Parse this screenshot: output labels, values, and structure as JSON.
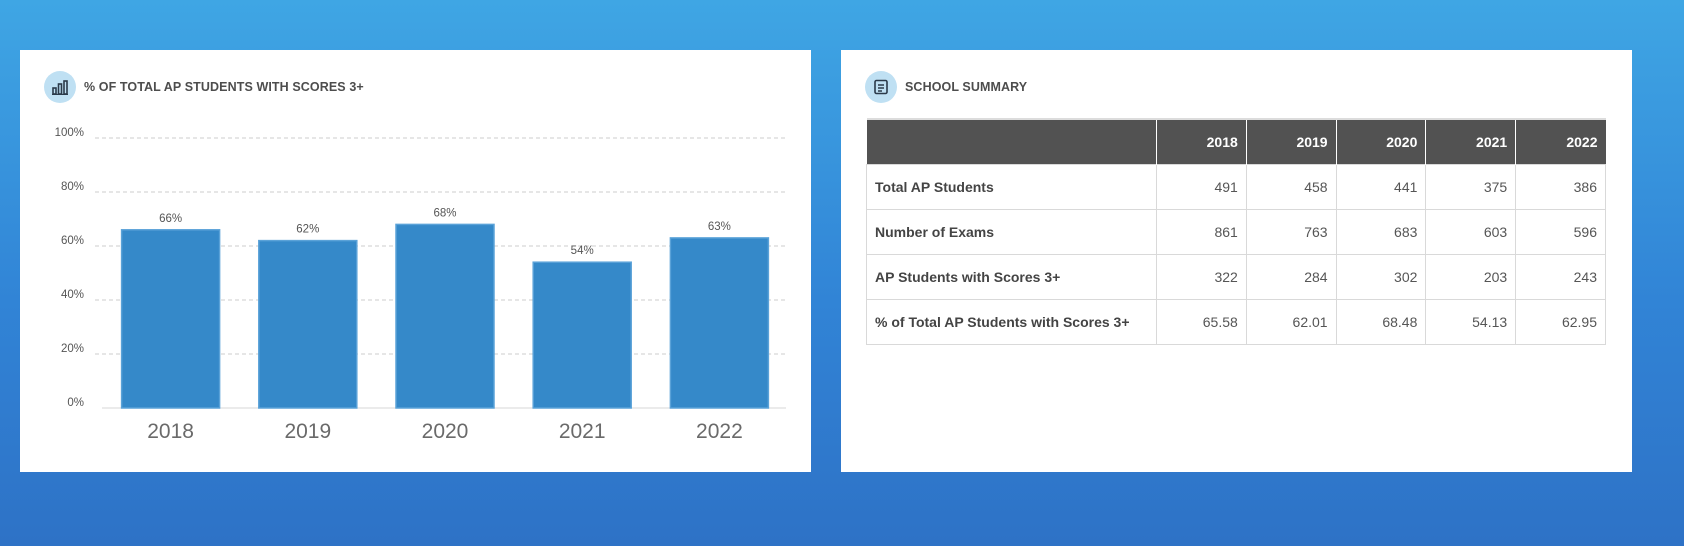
{
  "chart_card": {
    "title": "% OF TOTAL AP STUDENTS WITH SCORES 3+",
    "icon": "bar-chart-icon"
  },
  "summary_card": {
    "title": "SCHOOL SUMMARY",
    "icon": "document-icon",
    "columns": [
      "",
      "2018",
      "2019",
      "2020",
      "2021",
      "2022"
    ],
    "rows": [
      {
        "label": "Total AP Students",
        "values": [
          "491",
          "458",
          "441",
          "375",
          "386"
        ]
      },
      {
        "label": "Number of Exams",
        "values": [
          "861",
          "763",
          "683",
          "603",
          "596"
        ]
      },
      {
        "label": "AP Students with Scores 3+",
        "values": [
          "322",
          "284",
          "302",
          "203",
          "243"
        ]
      },
      {
        "label": "% of Total AP Students with Scores 3+",
        "values": [
          "65.58",
          "62.01",
          "68.48",
          "54.13",
          "62.95"
        ]
      }
    ]
  },
  "colors": {
    "bar": "#3589c9",
    "bar_border": "#5aa2d8",
    "header_bg": "#525252",
    "icon_bg": "#bfe0f3",
    "gradient_top": "#3fa6e4",
    "gradient_bottom": "#2e72c6"
  },
  "chart_data": {
    "type": "bar",
    "title": "% OF TOTAL AP STUDENTS WITH SCORES 3+",
    "categories": [
      "2018",
      "2019",
      "2020",
      "2021",
      "2022"
    ],
    "values": [
      66,
      62,
      68,
      54,
      63
    ],
    "value_labels": [
      "66%",
      "62%",
      "68%",
      "54%",
      "63%"
    ],
    "yticks": [
      0,
      20,
      40,
      60,
      80,
      100
    ],
    "ytick_labels": [
      "0%",
      "20%",
      "40%",
      "60%",
      "80%",
      "100%"
    ],
    "ylim": [
      0,
      100
    ],
    "xlabel": "",
    "ylabel": "",
    "grid": true,
    "legend": "none"
  }
}
